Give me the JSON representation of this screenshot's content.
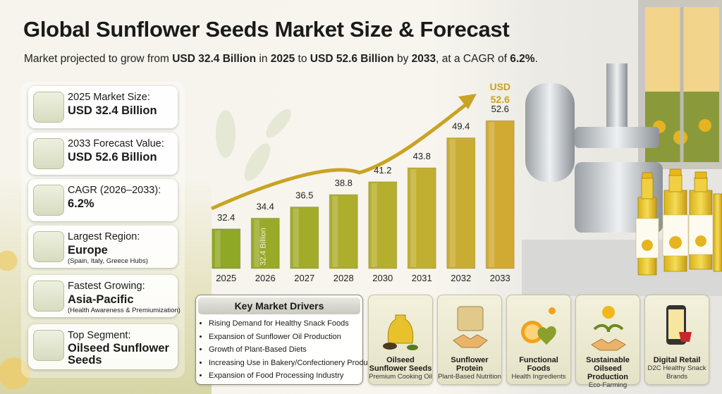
{
  "title": "Global Sunflower Seeds Market Size & Forecast",
  "subtitle": [
    "Market projected to grow from ",
    "USD 32.4 Billion",
    " in ",
    "2025",
    " to ",
    "USD 52.6 Billion",
    " by ",
    "2033",
    ", at a CAGR of ",
    "6.2%",
    "."
  ],
  "cards": [
    {
      "label": "2025 Market Size:",
      "value": "USD 32.4 Billion"
    },
    {
      "label": "2033 Forecast Value:",
      "value": "USD 52.6 Billion"
    },
    {
      "label": "CAGR (2026–2033):",
      "value": "6.2%"
    },
    {
      "label": "Largest Region:",
      "value": "Europe",
      "note": "(Spain, Italy, Greece Hubs)"
    },
    {
      "label": "Fastest Growing:",
      "value": "Asia-Pacific",
      "note": "(Health Awareness & Premiumization)"
    },
    {
      "label": "Top Segment:",
      "value": "Oilseed Sunflower Seeds"
    }
  ],
  "chart_data": {
    "type": "bar",
    "categories": [
      "2025",
      "2026",
      "2027",
      "2028",
      "2030",
      "2031",
      "2032",
      "2033"
    ],
    "values": [
      32.4,
      34.4,
      36.5,
      38.8,
      41.2,
      43.8,
      49.4,
      52.6
    ],
    "colors": [
      "#8fa826",
      "#99aa28",
      "#a3ac2a",
      "#adae2c",
      "#b6af2e",
      "#c0af30",
      "#c9ad32",
      "#d1aa33"
    ],
    "ylim": [
      25,
      55
    ],
    "annotations": [
      "32.4 Billion",
      "USD",
      "52.6"
    ]
  },
  "drivers": {
    "title": "Key Market Drivers",
    "items": [
      "Rising Demand for Healthy Snack Foods",
      "Expansion of Sunflower Oil Production",
      "Growth of Plant-Based Diets",
      "Increasing Use in Bakery/Confectionery Products",
      "Expansion of Food Processing Industry"
    ]
  },
  "tiles": [
    {
      "title": "Oilseed Sunflower Seeds",
      "subtitle": "Premium Cooking Oil"
    },
    {
      "title": "Sunflower Protein",
      "subtitle": "Plant-Based Nutrition"
    },
    {
      "title": "Functional Foods",
      "subtitle": "Health Ingredients"
    },
    {
      "title": "Sustainable Oilseed Production",
      "subtitle": "Eco-Farming"
    },
    {
      "title": "Digital Retail",
      "subtitle": "D2C Healthy Snack Brands"
    }
  ]
}
